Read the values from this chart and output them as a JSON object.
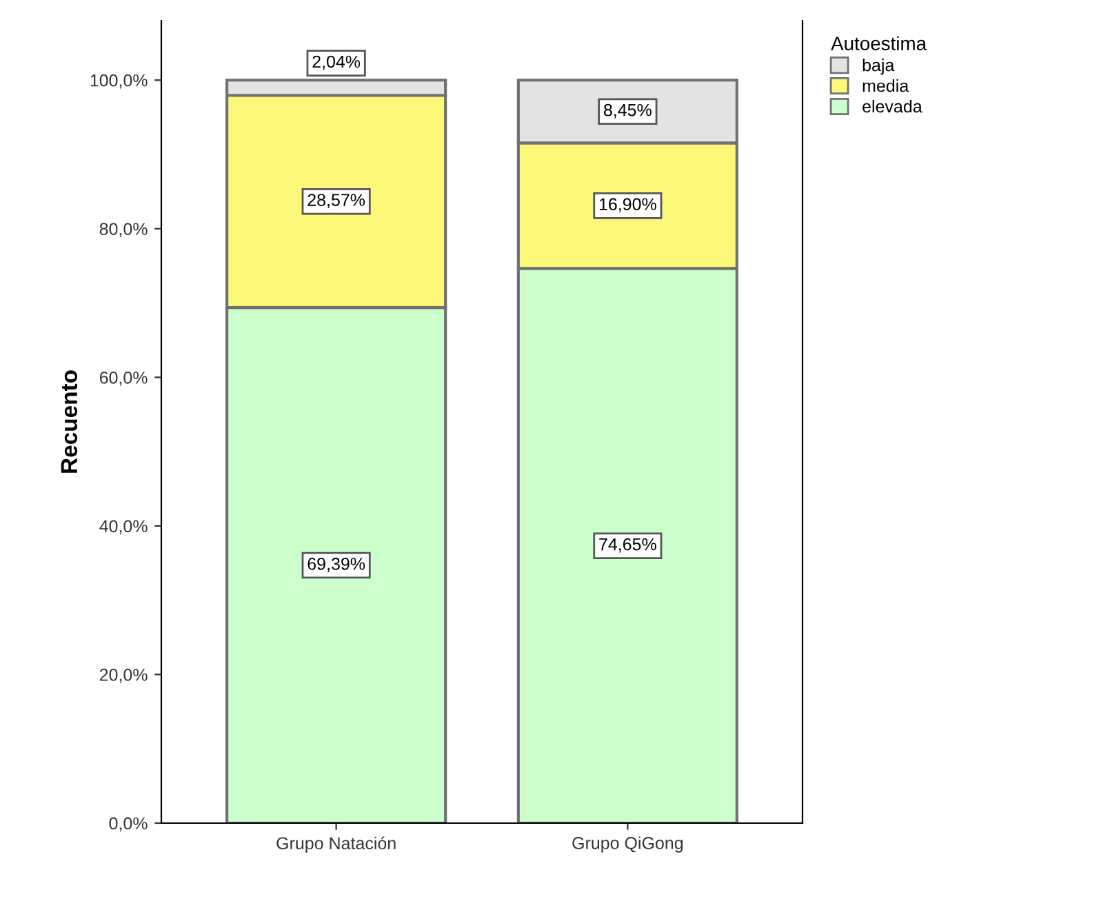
{
  "chart_data": {
    "type": "bar",
    "stacked": true,
    "ylabel": "Recuento",
    "legend_title": "Autoestima",
    "legend": "right",
    "categories": [
      "Grupo Natación",
      "Grupo QiGong"
    ],
    "series": [
      {
        "name": "elevada",
        "color": "#ccffcc",
        "values": [
          69.39,
          74.65
        ],
        "value_labels": [
          "69,39%",
          "74,65%"
        ]
      },
      {
        "name": "media",
        "color": "#fbf779",
        "values": [
          28.57,
          16.9
        ],
        "value_labels": [
          "28,57%",
          "16,90%"
        ]
      },
      {
        "name": "baja",
        "color": "#e3e3e3",
        "values": [
          2.04,
          8.45
        ],
        "value_labels": [
          "2,04%",
          "8,45%"
        ]
      }
    ],
    "ylim": [
      0,
      108
    ],
    "yticks": [
      {
        "value": 0,
        "label": "0,0%"
      },
      {
        "value": 20,
        "label": "20,0%"
      },
      {
        "value": 40,
        "label": "40,0%"
      },
      {
        "value": 60,
        "label": "60,0%"
      },
      {
        "value": 80,
        "label": "80,0%"
      },
      {
        "value": 100,
        "label": "100,0%"
      }
    ],
    "grid": false
  }
}
